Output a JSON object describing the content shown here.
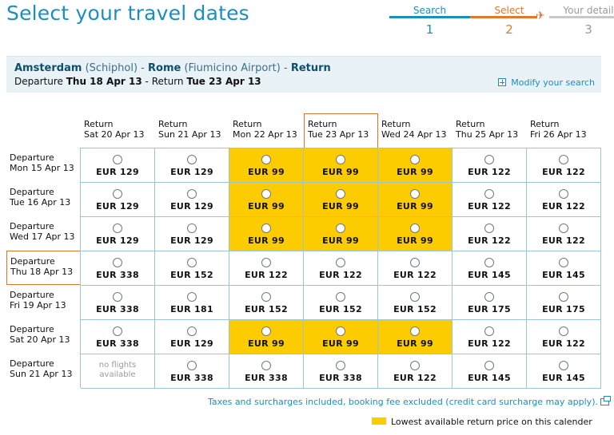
{
  "page_title": "Select your travel dates",
  "steps": [
    {
      "label": "Search",
      "number": "1"
    },
    {
      "label": "Select",
      "number": "2"
    },
    {
      "label": "Your detail",
      "number": "3"
    }
  ],
  "route": {
    "from_city": "Amsterdam",
    "from_airport": "(Schiphol)",
    "to_city": "Rome",
    "to_airport": "(Fiumicino Airport)",
    "trip_type": "Return",
    "departure_label": "Departure",
    "departure_date": "Thu 18 Apr 13",
    "return_label": "Return",
    "return_date": "Tue 23 Apr 13"
  },
  "modify_search": "Modify your search",
  "columns": [
    {
      "label": "Return",
      "date": "Sat 20 Apr 13"
    },
    {
      "label": "Return",
      "date": "Sun 21 Apr 13"
    },
    {
      "label": "Return",
      "date": "Mon 22 Apr 13"
    },
    {
      "label": "Return",
      "date": "Tue 23 Apr 13"
    },
    {
      "label": "Return",
      "date": "Wed 24 Apr 13"
    },
    {
      "label": "Return",
      "date": "Thu 25 Apr 13"
    },
    {
      "label": "Return",
      "date": "Fri 26 Apr 13"
    }
  ],
  "rows": [
    {
      "label": "Departure",
      "date": "Mon 15 Apr 13",
      "prices": [
        "EUR 129",
        "EUR 129",
        "EUR 99",
        "EUR 99",
        "EUR 99",
        "EUR 122",
        "EUR 122"
      ],
      "lowest": [
        false,
        false,
        true,
        true,
        true,
        false,
        false
      ]
    },
    {
      "label": "Departure",
      "date": "Tue 16 Apr 13",
      "prices": [
        "EUR 129",
        "EUR 129",
        "EUR 99",
        "EUR 99",
        "EUR 99",
        "EUR 122",
        "EUR 122"
      ],
      "lowest": [
        false,
        false,
        true,
        true,
        true,
        false,
        false
      ]
    },
    {
      "label": "Departure",
      "date": "Wed 17 Apr 13",
      "prices": [
        "EUR 129",
        "EUR 129",
        "EUR 99",
        "EUR 99",
        "EUR 99",
        "EUR 122",
        "EUR 122"
      ],
      "lowest": [
        false,
        false,
        true,
        true,
        true,
        false,
        false
      ]
    },
    {
      "label": "Departure",
      "date": "Thu 18 Apr 13",
      "prices": [
        "EUR 338",
        "EUR 152",
        "EUR 122",
        "EUR 122",
        "EUR 122",
        "EUR 145",
        "EUR 145"
      ],
      "lowest": [
        false,
        false,
        false,
        false,
        false,
        false,
        false
      ]
    },
    {
      "label": "Departure",
      "date": "Fri 19 Apr 13",
      "prices": [
        "EUR 338",
        "EUR 181",
        "EUR 152",
        "EUR 152",
        "EUR 152",
        "EUR 175",
        "EUR 175"
      ],
      "lowest": [
        false,
        false,
        false,
        false,
        false,
        false,
        false
      ]
    },
    {
      "label": "Departure",
      "date": "Sat 20 Apr 13",
      "prices": [
        "EUR 338",
        "EUR 129",
        "EUR 99",
        "EUR 99",
        "EUR 99",
        "EUR 122",
        "EUR 122"
      ],
      "lowest": [
        false,
        false,
        true,
        true,
        true,
        false,
        false
      ]
    },
    {
      "label": "Departure",
      "date": "Sun 21 Apr 13",
      "prices": [
        "no flights available",
        "EUR 338",
        "EUR 338",
        "EUR 338",
        "EUR 122",
        "EUR 145",
        "EUR 145"
      ],
      "lowest": [
        false,
        false,
        false,
        false,
        false,
        false,
        false
      ]
    }
  ],
  "selected_column": 3,
  "selected_row": 3,
  "footnote": "Taxes and surcharges included, booking fee excluded (credit card surcharge may apply).",
  "legend_text": "Lowest available return price on this calender",
  "colors": {
    "accent": "#1a8fbf",
    "selected": "#e0782e",
    "lowest": "#fccb00"
  }
}
